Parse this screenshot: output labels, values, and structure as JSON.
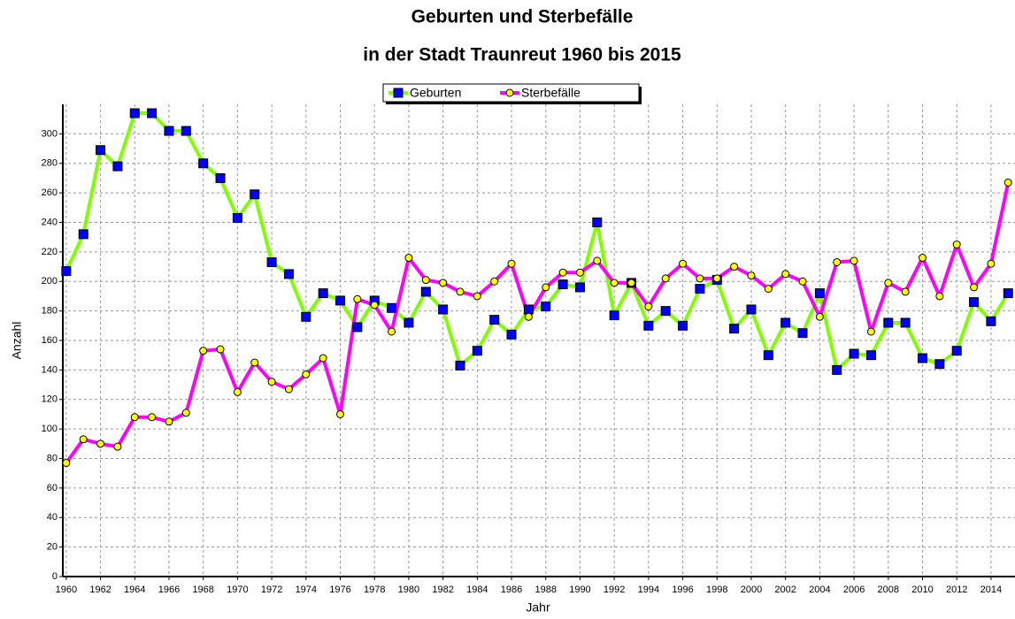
{
  "chart_data": {
    "type": "line",
    "title": [
      "Geburten und Sterbefälle",
      "in der Stadt Traunreut 1960 bis 2015"
    ],
    "xlabel": "Jahr",
    "ylabel": "Anzahl",
    "x": [
      1960,
      1961,
      1962,
      1963,
      1964,
      1965,
      1966,
      1967,
      1968,
      1969,
      1970,
      1971,
      1972,
      1973,
      1974,
      1975,
      1976,
      1977,
      1978,
      1979,
      1980,
      1981,
      1982,
      1983,
      1984,
      1985,
      1986,
      1987,
      1988,
      1989,
      1990,
      1991,
      1992,
      1993,
      1994,
      1995,
      1996,
      1997,
      1998,
      1999,
      2000,
      2001,
      2002,
      2003,
      2004,
      2005,
      2006,
      2007,
      2008,
      2009,
      2010,
      2011,
      2012,
      2013,
      2014,
      2015
    ],
    "series": [
      {
        "name": "Geburten",
        "color": "#80ff00",
        "marker": "square",
        "marker_color": "#0000ff",
        "values": [
          207,
          232,
          289,
          278,
          314,
          314,
          302,
          302,
          280,
          270,
          243,
          259,
          213,
          205,
          176,
          192,
          187,
          169,
          187,
          182,
          172,
          193,
          181,
          143,
          153,
          174,
          164,
          181,
          183,
          198,
          196,
          240,
          177,
          199,
          170,
          180,
          170,
          195,
          201,
          168,
          181,
          150,
          172,
          165,
          192,
          140,
          151,
          150,
          172,
          172,
          148,
          144,
          153,
          186,
          173,
          192
        ]
      },
      {
        "name": "Sterbefälle",
        "color": "#ff00ff",
        "marker": "circle",
        "marker_color": "#ffff00",
        "values": [
          77,
          93,
          90,
          88,
          108,
          108,
          105,
          111,
          153,
          154,
          125,
          145,
          132,
          127,
          137,
          148,
          110,
          188,
          184,
          166,
          216,
          201,
          199,
          193,
          190,
          200,
          212,
          176,
          196,
          206,
          206,
          214,
          199,
          199,
          183,
          202,
          212,
          202,
          202,
          210,
          204,
          195,
          205,
          200,
          176,
          213,
          214,
          166,
          199,
          193,
          216,
          190,
          225,
          196,
          212,
          267
        ]
      }
    ],
    "xlim": [
      1959.8,
      2015.4
    ],
    "xticks": [
      1960,
      1962,
      1964,
      1966,
      1968,
      1970,
      1972,
      1974,
      1976,
      1978,
      1980,
      1982,
      1984,
      1986,
      1988,
      1990,
      1992,
      1994,
      1996,
      1998,
      2000,
      2002,
      2004,
      2006,
      2008,
      2010,
      2012,
      2014
    ],
    "ylim": [
      0,
      320
    ],
    "yticks": [
      0,
      20,
      40,
      60,
      80,
      100,
      120,
      140,
      160,
      180,
      200,
      220,
      240,
      260,
      280,
      300
    ],
    "grid": true,
    "legend": "top"
  }
}
